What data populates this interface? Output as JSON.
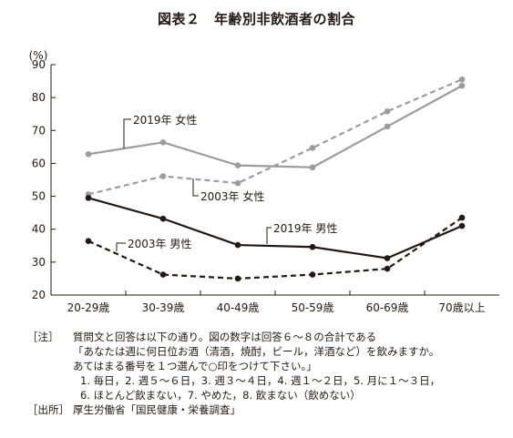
{
  "chart_data": {
    "type": "line",
    "title": "図表２　年齢別非飲酒者の割合",
    "ylabel": "(%)",
    "xlabel": "",
    "ylim": [
      20,
      90
    ],
    "yticks": [
      20,
      30,
      40,
      50,
      60,
      70,
      80,
      90
    ],
    "grid": false,
    "categories": [
      "20-29歳",
      "30-39歳",
      "40-49歳",
      "50-59歳",
      "60-69歳",
      "70歳以上"
    ],
    "series": [
      {
        "name": "2019年 女性",
        "values": [
          62.8,
          66.4,
          59.4,
          58.8,
          71.2,
          83.6
        ],
        "color": "#9c9c9c",
        "style": "solid"
      },
      {
        "name": "2003年 女性",
        "values": [
          50.6,
          56.1,
          54.0,
          64.7,
          75.8,
          85.5
        ],
        "color": "#9c9c9c",
        "style": "dashed"
      },
      {
        "name": "2019年 男性",
        "values": [
          49.5,
          43.2,
          35.2,
          34.6,
          31.2,
          41.0
        ],
        "color": "#231815",
        "style": "solid"
      },
      {
        "name": "2003年 男性",
        "values": [
          36.4,
          26.2,
          25.0,
          26.2,
          28.0,
          43.5
        ],
        "color": "#231815",
        "style": "dashed"
      }
    ]
  },
  "notes": {
    "note_key": "［注］",
    "note_lines": [
      "質問文と回答は以下の通り。図の数字は回答６～８の合計である",
      "「あなたは週に何日位お酒（清酒，焼酎，ビール，洋酒など）を飲みますか。",
      "あてはまる番号を１つ選んで○印をつけて下さい。」"
    ],
    "answer_lines": [
      "1. 毎日，2. 週５～６日，3. 週３～４日，4. 週１～２日，5. 月に１～３日，",
      "6. ほとんど飲まない，7. やめた，8. 飲まない（飲めない）"
    ],
    "source_key": "［出所］",
    "source_text": "厚生労働省「国民健康・栄養調査」"
  }
}
